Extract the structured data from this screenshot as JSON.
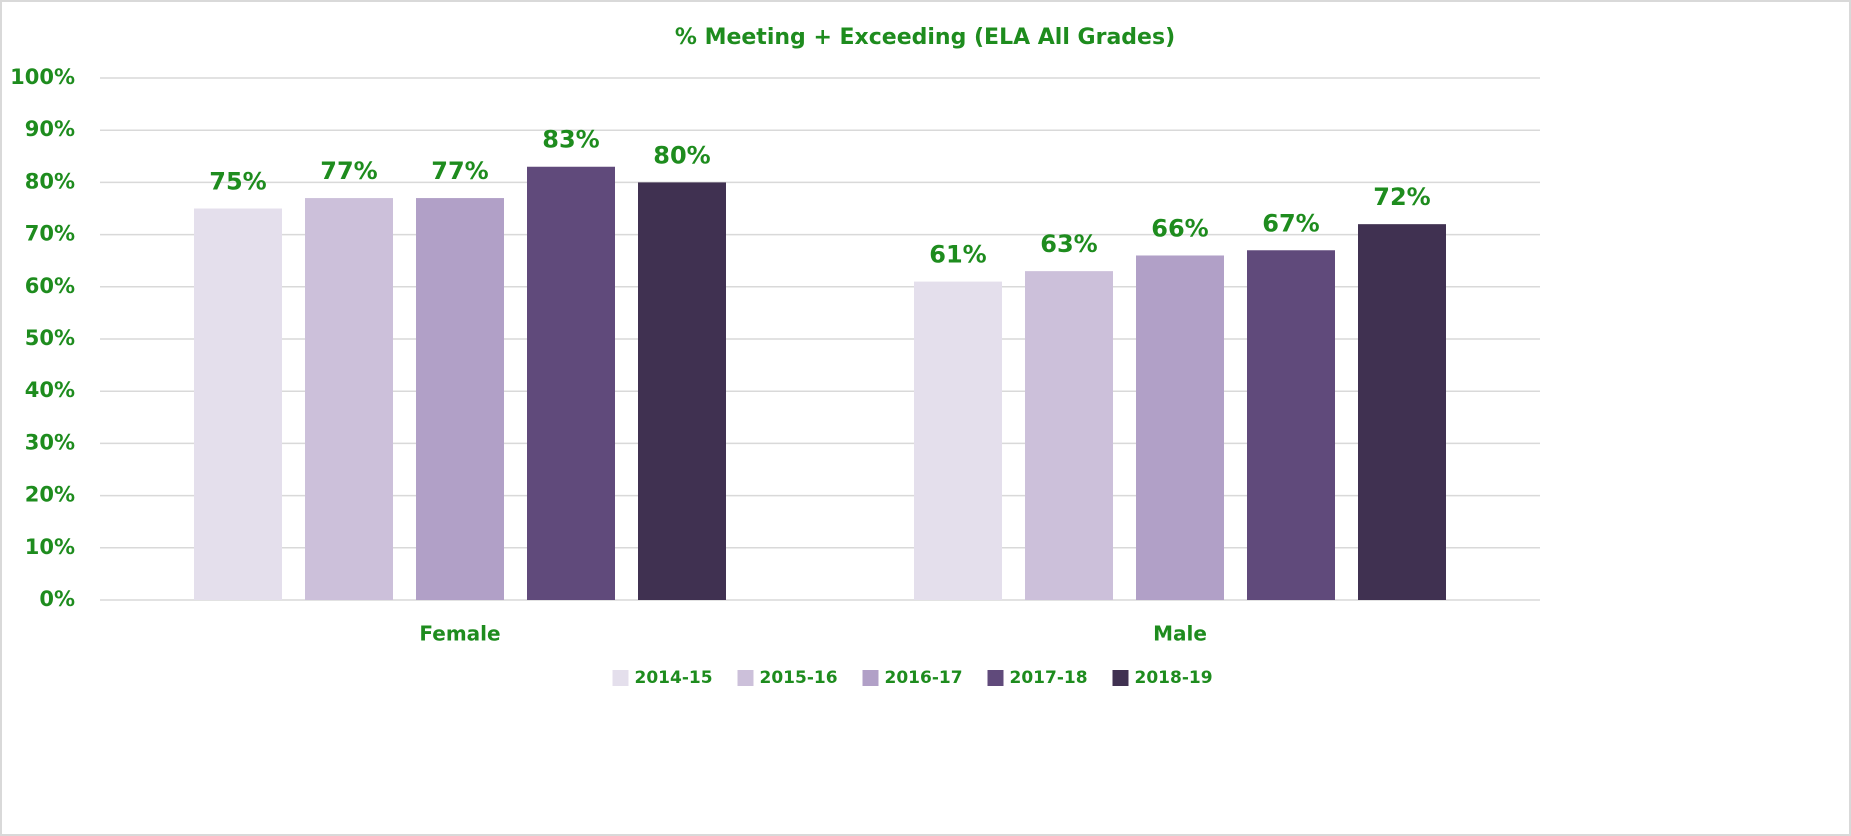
{
  "chart_data": {
    "type": "bar",
    "title": "% Meeting + Exceeding (ELA All Grades)",
    "categories": [
      "Female",
      "Male"
    ],
    "series": [
      {
        "name": "2014-15",
        "color": "#e4dfec",
        "values": [
          75,
          61
        ],
        "value_labels": [
          "75%",
          "61%"
        ]
      },
      {
        "name": "2015-16",
        "color": "#ccc0da",
        "values": [
          77,
          63
        ],
        "value_labels": [
          "77%",
          "63%"
        ]
      },
      {
        "name": "2016-17",
        "color": "#b1a0c7",
        "values": [
          77,
          66
        ],
        "value_labels": [
          "77%",
          "66%"
        ]
      },
      {
        "name": "2017-18",
        "color": "#604a7b",
        "values": [
          83,
          67
        ],
        "value_labels": [
          "83%",
          "67%"
        ]
      },
      {
        "name": "2018-19",
        "color": "#403151",
        "values": [
          80,
          72
        ],
        "value_labels": [
          "80%",
          "72%"
        ]
      }
    ],
    "ylim": [
      0,
      100
    ],
    "yticks": [
      {
        "value": 0,
        "label": "0%"
      },
      {
        "value": 10,
        "label": "10%"
      },
      {
        "value": 20,
        "label": "20%"
      },
      {
        "value": 30,
        "label": "30%"
      },
      {
        "value": 40,
        "label": "40%"
      },
      {
        "value": 50,
        "label": "50%"
      },
      {
        "value": 60,
        "label": "60%"
      },
      {
        "value": 70,
        "label": "70%"
      },
      {
        "value": 80,
        "label": "80%"
      },
      {
        "value": 90,
        "label": "90%"
      },
      {
        "value": 100,
        "label": "100%"
      }
    ],
    "grid": true,
    "legend": "bottom"
  }
}
